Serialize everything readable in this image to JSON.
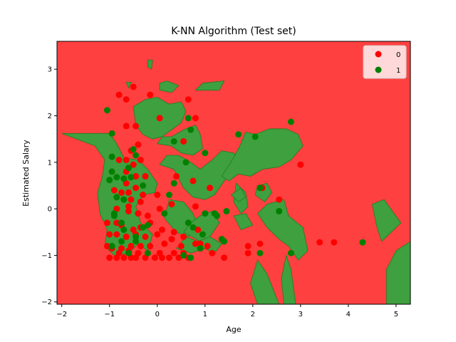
{
  "chart_data": {
    "type": "scatter",
    "title": "K-NN Algorithm (Test set)",
    "xlabel": "Age",
    "ylabel": "Estimated Salary",
    "xlim": [
      -2.1,
      5.3
    ],
    "ylim": [
      -2.05,
      3.6
    ],
    "xticks": [
      -2,
      -1,
      0,
      1,
      2,
      3,
      4,
      5
    ],
    "yticks": [
      -2,
      -1,
      0,
      1,
      2,
      3
    ],
    "grid": false,
    "legend_position": "top-right",
    "background_region": {
      "label": "0",
      "color": "#ff4040"
    },
    "decision_regions": {
      "label": "1",
      "color": "#3ea03e",
      "edge_color": "#237a23",
      "polygons": [
        [
          [
            -2.0,
            1.62
          ],
          [
            -1.3,
            1.35
          ],
          [
            -1.1,
            1.05
          ],
          [
            -1.15,
            0.7
          ],
          [
            -1.25,
            0.35
          ],
          [
            -1.2,
            -0.1
          ],
          [
            -1.05,
            -0.45
          ],
          [
            -1.1,
            -0.8
          ],
          [
            -0.9,
            -1.0
          ],
          [
            -0.6,
            -0.95
          ],
          [
            -0.4,
            -0.75
          ],
          [
            -0.2,
            -0.9
          ],
          [
            -0.1,
            -0.55
          ],
          [
            -0.35,
            -0.3
          ],
          [
            -0.45,
            0.05
          ],
          [
            -0.3,
            0.3
          ],
          [
            -0.05,
            0.35
          ],
          [
            0.0,
            0.55
          ],
          [
            -0.2,
            0.85
          ],
          [
            -0.4,
            1.05
          ],
          [
            -0.7,
            1.1
          ],
          [
            -0.85,
            1.4
          ],
          [
            -1.0,
            1.62
          ]
        ],
        [
          [
            -0.5,
            2.2
          ],
          [
            -0.45,
            1.8
          ],
          [
            -0.3,
            1.6
          ],
          [
            -0.1,
            1.5
          ],
          [
            0.1,
            1.55
          ],
          [
            0.3,
            1.7
          ],
          [
            0.5,
            1.85
          ],
          [
            0.6,
            2.1
          ],
          [
            0.5,
            2.3
          ],
          [
            0.25,
            2.25
          ],
          [
            0.0,
            2.4
          ],
          [
            -0.25,
            2.35
          ]
        ],
        [
          [
            0.0,
            1.4
          ],
          [
            0.3,
            1.35
          ],
          [
            0.5,
            1.2
          ],
          [
            0.75,
            1.15
          ],
          [
            0.95,
            1.3
          ],
          [
            0.9,
            1.6
          ],
          [
            0.8,
            1.8
          ],
          [
            0.55,
            1.7
          ],
          [
            0.3,
            1.55
          ],
          [
            0.1,
            1.55
          ]
        ],
        [
          [
            0.05,
            0.95
          ],
          [
            0.35,
            0.85
          ],
          [
            0.55,
            0.45
          ],
          [
            0.75,
            0.25
          ],
          [
            1.0,
            0.2
          ],
          [
            1.2,
            0.3
          ],
          [
            1.4,
            0.6
          ],
          [
            1.65,
            0.8
          ],
          [
            1.75,
            1.05
          ],
          [
            1.6,
            1.2
          ],
          [
            1.35,
            1.25
          ],
          [
            1.15,
            1.05
          ],
          [
            0.9,
            0.85
          ],
          [
            0.7,
            1.0
          ],
          [
            0.45,
            1.15
          ],
          [
            0.2,
            1.15
          ]
        ],
        [
          [
            0.25,
            0.2
          ],
          [
            0.55,
            0.15
          ],
          [
            0.75,
            -0.1
          ],
          [
            0.85,
            -0.35
          ],
          [
            0.65,
            -0.6
          ],
          [
            0.4,
            -0.5
          ],
          [
            0.15,
            -0.2
          ]
        ],
        [
          [
            0.55,
            -0.5
          ],
          [
            0.9,
            -0.7
          ],
          [
            1.1,
            -0.6
          ],
          [
            1.3,
            -0.3
          ],
          [
            1.15,
            -0.05
          ],
          [
            0.9,
            -0.15
          ],
          [
            0.7,
            -0.3
          ]
        ],
        [
          [
            0.4,
            -0.85
          ],
          [
            0.7,
            -0.95
          ],
          [
            1.0,
            -0.85
          ],
          [
            1.2,
            -0.95
          ],
          [
            1.35,
            -0.75
          ],
          [
            1.1,
            -0.6
          ],
          [
            0.85,
            -0.7
          ],
          [
            0.6,
            -0.6
          ]
        ],
        [
          [
            1.35,
            0.7
          ],
          [
            1.6,
            1.1
          ],
          [
            1.75,
            1.4
          ],
          [
            1.85,
            1.65
          ],
          [
            2.05,
            1.6
          ],
          [
            2.35,
            1.72
          ],
          [
            2.7,
            1.72
          ],
          [
            2.95,
            1.6
          ],
          [
            3.05,
            1.35
          ],
          [
            2.8,
            1.05
          ],
          [
            2.55,
            0.9
          ],
          [
            2.2,
            0.85
          ],
          [
            1.95,
            0.7
          ],
          [
            1.7,
            0.75
          ],
          [
            1.5,
            0.6
          ]
        ],
        [
          [
            1.65,
            0.55
          ],
          [
            1.85,
            0.35
          ],
          [
            1.9,
            0.05
          ],
          [
            1.75,
            -0.1
          ],
          [
            1.6,
            0.15
          ]
        ],
        [
          [
            2.1,
            0.5
          ],
          [
            2.3,
            0.55
          ],
          [
            2.4,
            0.35
          ],
          [
            2.25,
            0.15
          ],
          [
            2.05,
            0.3
          ]
        ],
        [
          [
            1.55,
            0.3
          ],
          [
            1.75,
            0.45
          ],
          [
            1.85,
            0.25
          ],
          [
            1.7,
            0.15
          ]
        ],
        [
          [
            1.6,
            -0.15
          ],
          [
            1.85,
            -0.1
          ],
          [
            2.0,
            -0.35
          ],
          [
            1.75,
            -0.45
          ]
        ],
        [
          [
            2.1,
            -0.1
          ],
          [
            2.3,
            0.1
          ],
          [
            2.65,
            0.2
          ],
          [
            2.75,
            -0.15
          ],
          [
            3.05,
            -0.4
          ],
          [
            3.15,
            -0.9
          ],
          [
            2.95,
            -1.1
          ],
          [
            2.75,
            -0.8
          ],
          [
            2.55,
            -0.65
          ],
          [
            2.3,
            -0.4
          ]
        ],
        [
          [
            -0.65,
            2.72
          ],
          [
            -0.55,
            2.72
          ],
          [
            -0.6,
            2.6
          ]
        ],
        [
          [
            0.05,
            2.55
          ],
          [
            0.3,
            2.5
          ],
          [
            0.45,
            2.65
          ],
          [
            0.2,
            2.75
          ],
          [
            0.05,
            2.7
          ]
        ],
        [
          [
            0.8,
            2.55
          ],
          [
            1.3,
            2.55
          ],
          [
            1.4,
            2.75
          ],
          [
            0.95,
            2.7
          ]
        ],
        [
          [
            -0.2,
            3.2
          ],
          [
            -0.1,
            3.2
          ],
          [
            -0.12,
            3.0
          ],
          [
            -0.2,
            3.05
          ]
        ],
        [
          [
            2.1,
            -2.05
          ],
          [
            2.55,
            -2.05
          ],
          [
            2.3,
            -1.4
          ],
          [
            2.1,
            -1.1
          ],
          [
            1.95,
            -1.6
          ]
        ],
        [
          [
            2.65,
            -2.05
          ],
          [
            2.9,
            -2.05
          ],
          [
            2.8,
            -1.3
          ],
          [
            2.7,
            -1.0
          ],
          [
            2.6,
            -1.5
          ]
        ],
        [
          [
            4.5,
            0.1
          ],
          [
            4.75,
            0.2
          ],
          [
            5.1,
            -0.3
          ],
          [
            4.9,
            -0.5
          ],
          [
            4.7,
            -0.7
          ],
          [
            4.6,
            -0.4
          ]
        ],
        [
          [
            4.8,
            -2.05
          ],
          [
            5.3,
            -2.05
          ],
          [
            5.3,
            -0.7
          ],
          [
            5.0,
            -0.9
          ],
          [
            4.8,
            -1.3
          ]
        ]
      ]
    },
    "series": [
      {
        "name": "0",
        "color": "#ff0000",
        "points": [
          [
            -0.5,
            2.62
          ],
          [
            -0.8,
            2.45
          ],
          [
            -0.65,
            2.35
          ],
          [
            -0.15,
            2.45
          ],
          [
            0.65,
            2.35
          ],
          [
            -0.65,
            1.78
          ],
          [
            -0.45,
            1.78
          ],
          [
            0.05,
            1.95
          ],
          [
            0.8,
            1.95
          ],
          [
            0.55,
            1.45
          ],
          [
            -0.4,
            1.38
          ],
          [
            -0.55,
            1.25
          ],
          [
            -0.8,
            1.05
          ],
          [
            -0.65,
            1.05
          ],
          [
            -0.35,
            1.05
          ],
          [
            -0.5,
            0.95
          ],
          [
            -0.65,
            0.8
          ],
          [
            -0.45,
            0.7
          ],
          [
            -0.25,
            0.7
          ],
          [
            -0.65,
            0.55
          ],
          [
            -0.9,
            0.4
          ],
          [
            -0.75,
            0.35
          ],
          [
            -0.6,
            0.35
          ],
          [
            -0.45,
            0.45
          ],
          [
            0.0,
            0.3
          ],
          [
            0.4,
            0.7
          ],
          [
            0.75,
            0.6
          ],
          [
            1.1,
            0.45
          ],
          [
            -0.55,
            0.2
          ],
          [
            -0.35,
            0.15
          ],
          [
            -0.85,
            0.0
          ],
          [
            -0.6,
            -0.05
          ],
          [
            -0.4,
            -0.1
          ],
          [
            -0.2,
            -0.15
          ],
          [
            0.05,
            0.0
          ],
          [
            0.3,
            0.1
          ],
          [
            0.8,
            0.05
          ],
          [
            -0.85,
            -0.3
          ],
          [
            -0.75,
            -0.35
          ],
          [
            -0.5,
            -0.45
          ],
          [
            -0.35,
            -0.4
          ],
          [
            -0.15,
            -0.3
          ],
          [
            0.1,
            -0.45
          ],
          [
            0.35,
            -0.5
          ],
          [
            0.85,
            -0.45
          ],
          [
            -1.05,
            -0.3
          ],
          [
            -1.0,
            -0.55
          ],
          [
            -0.85,
            -0.55
          ],
          [
            -0.65,
            -0.6
          ],
          [
            -0.45,
            -0.55
          ],
          [
            -0.25,
            -0.6
          ],
          [
            0.0,
            -0.55
          ],
          [
            0.3,
            -0.65
          ],
          [
            0.55,
            -0.6
          ],
          [
            0.8,
            -0.75
          ],
          [
            -1.05,
            -0.8
          ],
          [
            -0.95,
            -0.85
          ],
          [
            -0.75,
            -0.85
          ],
          [
            -0.55,
            -0.8
          ],
          [
            -0.35,
            -0.8
          ],
          [
            -0.15,
            -0.8
          ],
          [
            0.15,
            -0.75
          ],
          [
            0.5,
            -0.8
          ],
          [
            0.9,
            -0.75
          ],
          [
            1.05,
            -0.8
          ],
          [
            -1.0,
            -1.05
          ],
          [
            -0.85,
            -1.05
          ],
          [
            -0.7,
            -1.05
          ],
          [
            -0.55,
            -1.05
          ],
          [
            -0.45,
            -1.05
          ],
          [
            -0.25,
            -1.05
          ],
          [
            -0.05,
            -1.05
          ],
          [
            0.1,
            -1.05
          ],
          [
            0.25,
            -1.05
          ],
          [
            0.45,
            -1.05
          ],
          [
            0.65,
            -1.05
          ],
          [
            1.15,
            -0.95
          ],
          [
            1.4,
            -1.05
          ],
          [
            -0.8,
            -0.95
          ],
          [
            -0.6,
            -0.9
          ],
          [
            -0.4,
            -0.95
          ],
          [
            0.05,
            -0.95
          ],
          [
            0.35,
            -0.95
          ],
          [
            0.55,
            -0.95
          ],
          [
            1.9,
            -0.8
          ],
          [
            1.9,
            -0.95
          ],
          [
            2.15,
            -0.75
          ],
          [
            2.2,
            0.45
          ],
          [
            2.55,
            0.2
          ],
          [
            3.0,
            0.95
          ],
          [
            3.4,
            -0.72
          ],
          [
            3.7,
            -0.72
          ],
          [
            -0.6,
            0.05
          ],
          [
            -0.3,
            0.3
          ]
        ]
      },
      {
        "name": "1",
        "color": "#008000",
        "points": [
          [
            -1.05,
            2.12
          ],
          [
            -0.95,
            1.62
          ],
          [
            -0.95,
            1.12
          ],
          [
            -0.95,
            0.8
          ],
          [
            -1.0,
            0.62
          ],
          [
            -0.85,
            0.68
          ],
          [
            -0.5,
            1.28
          ],
          [
            -0.45,
            1.15
          ],
          [
            -0.6,
            0.88
          ],
          [
            -0.7,
            0.65
          ],
          [
            -0.55,
            0.68
          ],
          [
            -0.3,
            0.5
          ],
          [
            -0.85,
            0.25
          ],
          [
            -0.7,
            0.2
          ],
          [
            -0.9,
            -0.15
          ],
          [
            -0.75,
            -0.3
          ],
          [
            -0.7,
            -0.45
          ],
          [
            -0.45,
            -0.6
          ],
          [
            -0.2,
            -0.35
          ],
          [
            -0.3,
            -0.4
          ],
          [
            -0.95,
            -0.8
          ],
          [
            -0.75,
            -0.7
          ],
          [
            -0.6,
            -0.95
          ],
          [
            -0.45,
            -0.7
          ],
          [
            -0.2,
            -0.95
          ],
          [
            0.35,
            1.45
          ],
          [
            0.7,
            1.7
          ],
          [
            0.65,
            1.95
          ],
          [
            0.6,
            1.0
          ],
          [
            1.0,
            1.2
          ],
          [
            0.35,
            0.55
          ],
          [
            0.25,
            0.3
          ],
          [
            0.15,
            -0.1
          ],
          [
            0.65,
            -0.3
          ],
          [
            0.75,
            -0.4
          ],
          [
            1.0,
            -0.1
          ],
          [
            1.2,
            -0.1
          ],
          [
            1.25,
            -0.15
          ],
          [
            1.45,
            -0.05
          ],
          [
            1.35,
            -0.65
          ],
          [
            1.4,
            -0.7
          ],
          [
            0.55,
            -1.0
          ],
          [
            0.7,
            -1.05
          ],
          [
            0.9,
            -0.85
          ],
          [
            0.95,
            -0.55
          ],
          [
            1.7,
            1.6
          ],
          [
            2.05,
            1.55
          ],
          [
            2.8,
            1.87
          ],
          [
            2.15,
            0.45
          ],
          [
            2.55,
            -0.05
          ],
          [
            2.15,
            -0.95
          ],
          [
            2.8,
            -0.95
          ],
          [
            4.3,
            -0.72
          ],
          [
            -0.9,
            -0.1
          ]
        ]
      }
    ],
    "legend": [
      "0",
      "1"
    ]
  }
}
